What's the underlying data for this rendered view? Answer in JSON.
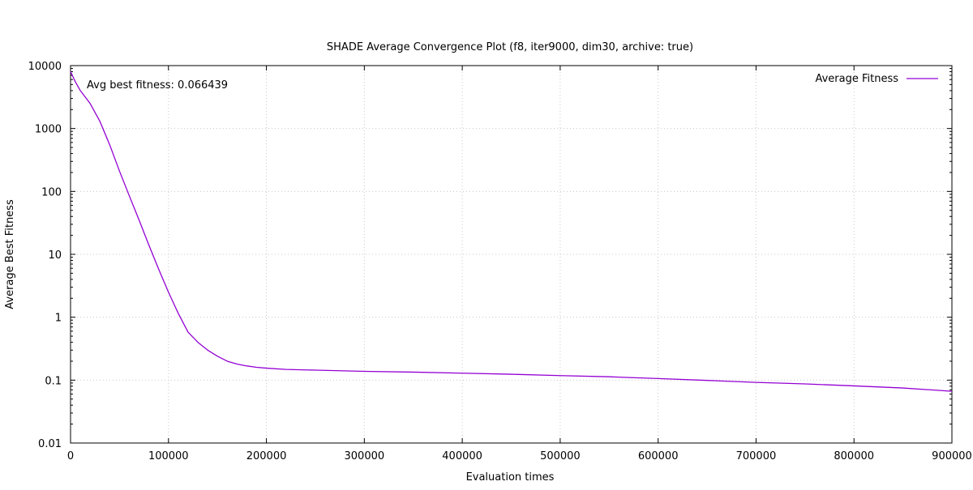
{
  "chart_data": {
    "type": "line",
    "title": "SHADE Average Convergence Plot (f8, iter9000, dim30, archive: true)",
    "xlabel": "Evaluation times",
    "ylabel": "Average Best Fitness",
    "xscale": "linear",
    "yscale": "log",
    "xlim": [
      0,
      900000
    ],
    "ylim": [
      0.01,
      10000
    ],
    "xticks": [
      0,
      100000,
      200000,
      300000,
      400000,
      500000,
      600000,
      700000,
      800000,
      900000
    ],
    "xtick_labels": [
      "0",
      "100000",
      "200000",
      "300000",
      "400000",
      "500000",
      "600000",
      "700000",
      "800000",
      "900000"
    ],
    "yticks": [
      0.01,
      0.1,
      1,
      10,
      100,
      1000,
      10000
    ],
    "ytick_labels": [
      "0.01",
      "0.1",
      "1",
      "10",
      "100",
      "1000",
      "10000"
    ],
    "grid": true,
    "legend_position": "top-right",
    "annotation": "Avg best fitness: 0.066439",
    "series": [
      {
        "name": "Average Fitness",
        "color": "#9400d3",
        "x": [
          0,
          5000,
          10000,
          20000,
          30000,
          40000,
          50000,
          60000,
          70000,
          80000,
          90000,
          100000,
          110000,
          120000,
          130000,
          140000,
          150000,
          160000,
          170000,
          180000,
          190000,
          200000,
          220000,
          250000,
          300000,
          350000,
          400000,
          450000,
          500000,
          550000,
          600000,
          650000,
          700000,
          750000,
          800000,
          850000,
          900000
        ],
        "y": [
          8000,
          5500,
          4000,
          2500,
          1300,
          550,
          210,
          85,
          35,
          14,
          5.8,
          2.5,
          1.15,
          0.58,
          0.4,
          0.3,
          0.24,
          0.2,
          0.18,
          0.168,
          0.16,
          0.155,
          0.148,
          0.144,
          0.138,
          0.134,
          0.129,
          0.124,
          0.118,
          0.113,
          0.106,
          0.099,
          0.092,
          0.087,
          0.081,
          0.075,
          0.066439
        ]
      }
    ]
  }
}
